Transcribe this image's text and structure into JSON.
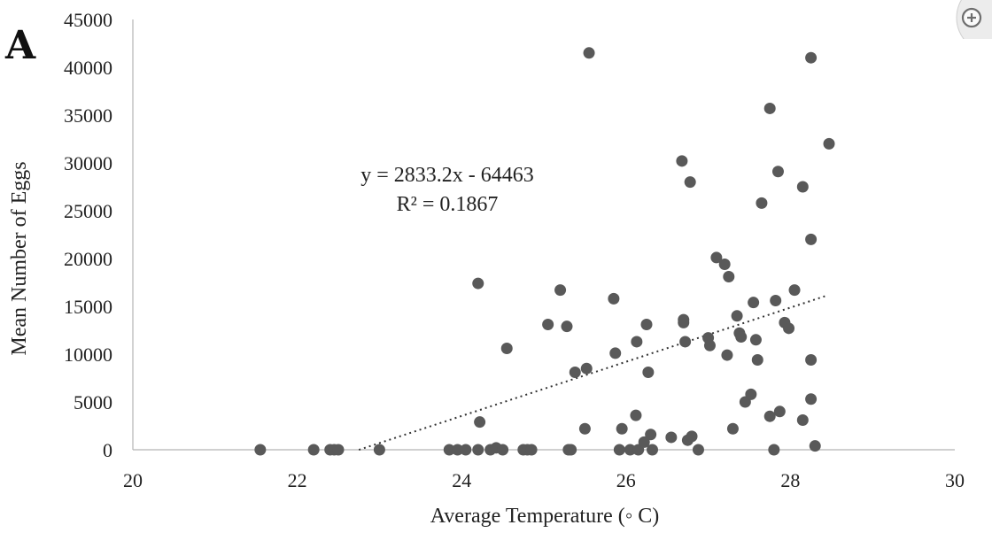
{
  "panel_label": "A",
  "zoom_button": {
    "icon": "zoom-in-icon",
    "glyph": "+"
  },
  "chart_data": {
    "type": "scatter",
    "xlabel": "Average Temperature (◦ C)",
    "ylabel": "Mean  Number of Eggs",
    "xlim": [
      20,
      30
    ],
    "ylim": [
      0,
      45000
    ],
    "x_ticks": [
      "20",
      "22",
      "24",
      "26",
      "28",
      "30"
    ],
    "y_ticks": [
      "0",
      "5000",
      "10000",
      "15000",
      "20000",
      "25000",
      "30000",
      "35000",
      "40000",
      "45000"
    ],
    "grid": false,
    "marker_color": "#595959",
    "trendline": {
      "equation": "y = 2833.2x - 64463",
      "r2": "R² = 0.1867",
      "slope": 2833.2,
      "intercept": -64463,
      "x_range": [
        22.75,
        28.45
      ],
      "style": "dotted"
    },
    "points": [
      [
        21.55,
        0
      ],
      [
        22.2,
        0
      ],
      [
        22.4,
        0
      ],
      [
        22.45,
        0
      ],
      [
        22.5,
        0
      ],
      [
        23.0,
        0
      ],
      [
        23.85,
        0
      ],
      [
        23.95,
        0
      ],
      [
        24.05,
        0
      ],
      [
        24.2,
        0
      ],
      [
        24.35,
        0
      ],
      [
        24.42,
        200
      ],
      [
        24.5,
        0
      ],
      [
        24.75,
        0
      ],
      [
        24.8,
        0
      ],
      [
        24.85,
        0
      ],
      [
        25.3,
        0
      ],
      [
        25.33,
        0
      ],
      [
        24.22,
        2900
      ],
      [
        24.2,
        17400
      ],
      [
        24.55,
        10600
      ],
      [
        25.05,
        13100
      ],
      [
        25.2,
        16700
      ],
      [
        25.28,
        12900
      ],
      [
        25.38,
        8100
      ],
      [
        25.52,
        8500
      ],
      [
        25.5,
        2200
      ],
      [
        25.55,
        41500
      ],
      [
        25.85,
        15800
      ],
      [
        25.87,
        10100
      ],
      [
        25.95,
        2200
      ],
      [
        25.92,
        0
      ],
      [
        26.05,
        0
      ],
      [
        26.15,
        0
      ],
      [
        26.12,
        3600
      ],
      [
        26.13,
        11300
      ],
      [
        26.25,
        13100
      ],
      [
        26.27,
        8100
      ],
      [
        26.22,
        800
      ],
      [
        26.32,
        0
      ],
      [
        26.3,
        1600
      ],
      [
        26.55,
        1300
      ],
      [
        26.7,
        13300
      ],
      [
        26.7,
        13600
      ],
      [
        26.72,
        11300
      ],
      [
        26.68,
        30200
      ],
      [
        26.78,
        28000
      ],
      [
        26.75,
        1000
      ],
      [
        26.8,
        1400
      ],
      [
        26.88,
        0
      ],
      [
        27.0,
        11700
      ],
      [
        27.02,
        10900
      ],
      [
        27.1,
        20100
      ],
      [
        27.2,
        19400
      ],
      [
        27.25,
        18100
      ],
      [
        27.23,
        9900
      ],
      [
        27.3,
        2200
      ],
      [
        27.35,
        14000
      ],
      [
        27.38,
        12200
      ],
      [
        27.4,
        11800
      ],
      [
        27.45,
        5000
      ],
      [
        27.52,
        5800
      ],
      [
        27.55,
        15400
      ],
      [
        27.58,
        11500
      ],
      [
        27.6,
        9400
      ],
      [
        27.65,
        25800
      ],
      [
        27.75,
        35700
      ],
      [
        27.75,
        3500
      ],
      [
        27.8,
        0
      ],
      [
        27.82,
        15600
      ],
      [
        27.85,
        29100
      ],
      [
        27.87,
        4000
      ],
      [
        27.93,
        13300
      ],
      [
        27.98,
        12700
      ],
      [
        28.05,
        16700
      ],
      [
        28.15,
        27500
      ],
      [
        28.15,
        3100
      ],
      [
        28.25,
        41000
      ],
      [
        28.25,
        22000
      ],
      [
        28.25,
        9400
      ],
      [
        28.25,
        5300
      ],
      [
        28.3,
        400
      ],
      [
        28.47,
        32000
      ]
    ]
  }
}
